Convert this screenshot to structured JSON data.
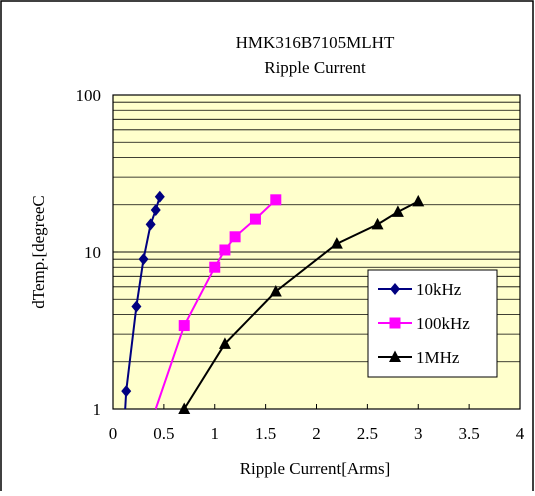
{
  "chart_data": {
    "type": "line",
    "title": "HMK316B7105MLHT",
    "subtitle": "Ripple Current",
    "xlabel": "Ripple Current[Arms]",
    "ylabel": "dTemp.[degreeC",
    "xlim": [
      0,
      4
    ],
    "ylim": [
      1,
      100
    ],
    "yscale": "log",
    "x_ticks": [
      "0",
      "0.5",
      "1",
      "1.5",
      "2",
      "2.5",
      "3",
      "3.5",
      "4"
    ],
    "y_ticks": [
      "1",
      "10",
      "100"
    ],
    "grid": true,
    "legend_position": "right",
    "plot_background": "#FFFFCC",
    "series": [
      {
        "name": "10kHz",
        "color": "#000080",
        "marker": "diamond",
        "x": [
          0.12,
          0.13,
          0.23,
          0.3,
          0.37,
          0.42,
          0.46
        ],
        "y": [
          1.0,
          1.3,
          4.5,
          9.0,
          15.0,
          18.5,
          22.5
        ]
      },
      {
        "name": "100kHz",
        "color": "#FF00FF",
        "marker": "square",
        "x": [
          0.42,
          0.7,
          1.0,
          1.1,
          1.2,
          1.4,
          1.6
        ],
        "y": [
          1.0,
          3.4,
          8.0,
          10.3,
          12.5,
          16.2,
          21.5
        ]
      },
      {
        "name": "1MHz",
        "color": "#000000",
        "marker": "triangle",
        "x": [
          0.7,
          1.1,
          1.6,
          2.2,
          2.6,
          2.8,
          3.0
        ],
        "y": [
          1.0,
          2.6,
          5.6,
          11.3,
          15.0,
          18.0,
          21.0
        ]
      }
    ]
  }
}
